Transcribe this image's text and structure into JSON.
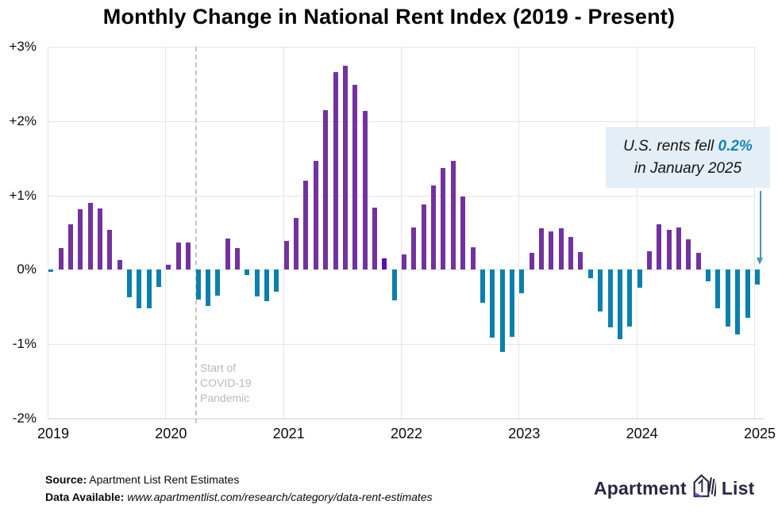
{
  "title": "Monthly Change in National Rent Index (2019 - Present)",
  "chart_data": {
    "type": "bar",
    "title": "Monthly Change in National Rent Index (2019 - Present)",
    "frequency": "monthly",
    "x_start": "Jan 2019",
    "x_end": "Jan 2025",
    "values": [
      -0.03,
      0.29,
      0.61,
      0.81,
      0.9,
      0.82,
      0.54,
      0.13,
      -0.37,
      -0.52,
      -0.52,
      -0.23,
      0.07,
      0.37,
      0.37,
      -0.4,
      -0.49,
      -0.35,
      0.42,
      0.29,
      -0.07,
      -0.36,
      -0.42,
      -0.29,
      0.39,
      0.7,
      1.2,
      1.47,
      2.15,
      2.66,
      2.74,
      2.49,
      2.14,
      0.84,
      0.15,
      -0.41,
      0.21,
      0.57,
      0.88,
      1.13,
      1.37,
      1.46,
      0.99,
      0.3,
      -0.44,
      -0.91,
      -1.1,
      -0.9,
      -0.32,
      0.23,
      0.56,
      0.52,
      0.56,
      0.44,
      0.24,
      -0.11,
      -0.56,
      -0.77,
      -0.93,
      -0.76,
      -0.24,
      0.25,
      0.61,
      0.54,
      0.57,
      0.41,
      0.23,
      -0.16,
      -0.52,
      -0.76,
      -0.87,
      -0.65,
      -0.2
    ],
    "x_tick_labels": [
      "2019",
      "2020",
      "2021",
      "2022",
      "2023",
      "2024",
      "2025"
    ],
    "y_tick_labels": [
      "+3%",
      "+2%",
      "+1%",
      "0%",
      "-1%",
      "-2%"
    ],
    "ylim": [
      -2,
      3
    ],
    "grid": true,
    "positive_color": "#7232a0",
    "negative_color": "#0b80ad",
    "highlight_bar": {
      "index": 34,
      "color": "#5a0ab8"
    },
    "covid_marker": {
      "label": "Start of\nCOVID-19\nPandemic",
      "position": "Mar 2020"
    }
  },
  "callout": {
    "line1_prefix": "U.S. rents fell ",
    "highlight": "0.2%",
    "line2": "in January 2025",
    "highlight_color": "#1286b6",
    "arrow_color": "#4493b9",
    "bg_color": "#e4eef6"
  },
  "covid_note_text": "Start of\nCOVID-19\nPandemic",
  "footer": {
    "source_label": "Source:",
    "source_text": " Apartment List Rent Estimates",
    "data_label": "Data Available:",
    "data_text": " www.apartmentlist.com/research/category/data-rent-estimates"
  },
  "logo": {
    "word1": "Apartment",
    "word2": "List",
    "accent_color": "#7a3bd6",
    "ink_color": "#2b2740"
  }
}
